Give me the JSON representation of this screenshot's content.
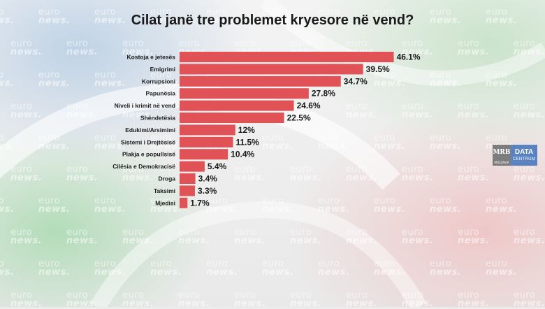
{
  "chart_data": {
    "type": "bar",
    "orientation": "horizontal",
    "title": "Cilat janë tre problemet kryesore në vend?",
    "categories": [
      "Kostoja e jetesës",
      "Emigrimi",
      "Korrupsioni",
      "Papunësia",
      "Niveli i krimit në vend",
      "Shëndetësia",
      "Edukimi/Arsimimi",
      "Sistemi i Drejtësisë",
      "Plakja e popullsisë",
      "Cilësia e Demokracisë",
      "Droga",
      "Taksimi",
      "Mjedisi"
    ],
    "values": [
      46.1,
      39.5,
      34.7,
      27.8,
      24.6,
      22.5,
      12,
      11.5,
      10.4,
      5.4,
      3.4,
      3.3,
      1.7
    ],
    "value_labels": [
      "46.1%",
      "39.5%",
      "34.7%",
      "27.8%",
      "24.6%",
      "22.5%",
      "12%",
      "11.5%",
      "10.4%",
      "5.4%",
      "3.4%",
      "3.3%",
      "1.7%"
    ],
    "xlim": [
      0,
      50
    ],
    "grid": false,
    "bar_color": "#e05256"
  },
  "watermark": {
    "line1": "euro",
    "line2": "news."
  },
  "logo": {
    "left": "MRB",
    "left_small": "MOLDAVIA",
    "right_top": "DATA",
    "right_bottom": "CENTRUM"
  }
}
